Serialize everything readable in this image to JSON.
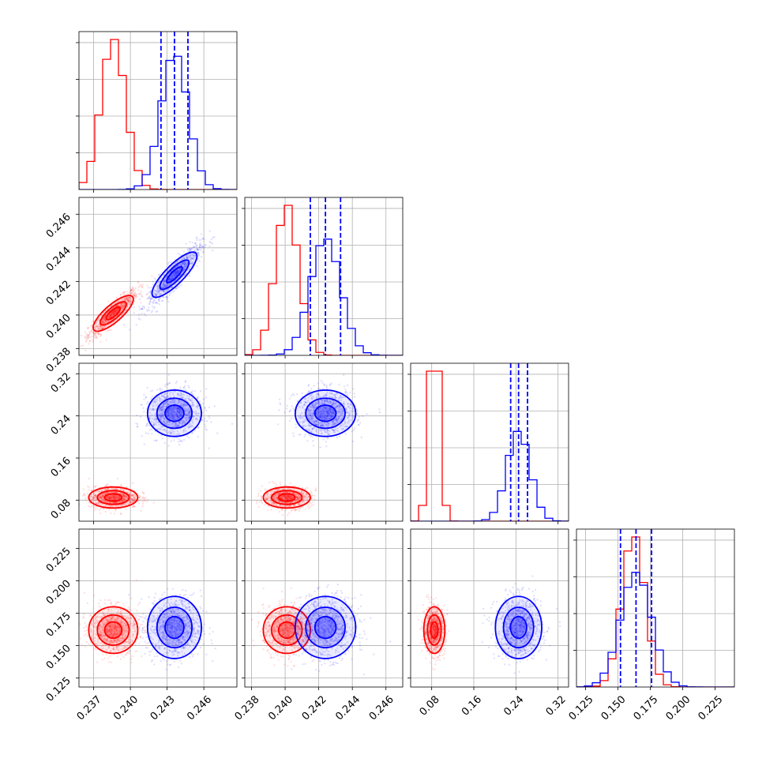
{
  "chart_data": {
    "type": "scatter",
    "subtype": "corner-plot",
    "title": "",
    "grid": true,
    "legend": "none",
    "n_params": 4,
    "axes_labels": [
      "",
      "",
      "",
      ""
    ],
    "colors": {
      "red": "#ff0000",
      "blue": "#0000ff"
    },
    "params": [
      {
        "ticks": [
          0.237,
          0.24,
          0.243,
          0.246
        ],
        "tick_labels": [
          "0.237",
          "0.240",
          "0.243",
          "0.246"
        ],
        "range": [
          0.2358,
          0.2487
        ]
      },
      {
        "ticks": [
          0.238,
          0.24,
          0.242,
          0.244,
          0.246
        ],
        "tick_labels": [
          "0.238",
          "0.240",
          "0.242",
          "0.244",
          "0.246"
        ],
        "range": [
          0.2376,
          0.247
        ]
      },
      {
        "ticks": [
          0.08,
          0.16,
          0.24,
          0.32
        ],
        "tick_labels": [
          "0.08",
          "0.16",
          "0.24",
          "0.32"
        ],
        "range": [
          0.04,
          0.34
        ]
      },
      {
        "ticks": [
          0.125,
          0.15,
          0.175,
          0.2,
          0.225
        ],
        "tick_labels": [
          "0.125",
          "0.150",
          "0.175",
          "0.200",
          "0.225"
        ],
        "range": [
          0.118,
          0.24
        ]
      }
    ],
    "series": [
      {
        "color": "#ff0000",
        "mean": [
          0.2386,
          0.2401,
          0.085,
          0.162
        ],
        "std": [
          0.001,
          0.0007,
          0.01,
          0.009
        ],
        "corr": [
          [
            1,
            0.9,
            0,
            0
          ],
          [
            0.9,
            1,
            0,
            0
          ],
          [
            0,
            0,
            1,
            0
          ],
          [
            0,
            0,
            0,
            1
          ]
        ]
      },
      {
        "color": "#0000ff",
        "mean": [
          0.2436,
          0.2424,
          0.245,
          0.164
        ],
        "std": [
          0.0011,
          0.0009,
          0.022,
          0.012
        ],
        "corr": [
          [
            1,
            0.9,
            0,
            0
          ],
          [
            0.9,
            1,
            0,
            0
          ],
          [
            0,
            0,
            1,
            0
          ],
          [
            0,
            0,
            0,
            1
          ]
        ]
      }
    ],
    "quantile_lines_blue": [
      [
        0.2425,
        0.2436,
        0.2447
      ],
      [
        0.2415,
        0.2424,
        0.2433
      ],
      [
        0.23,
        0.245,
        0.262
      ],
      [
        0.152,
        0.164,
        0.176
      ]
    ]
  }
}
